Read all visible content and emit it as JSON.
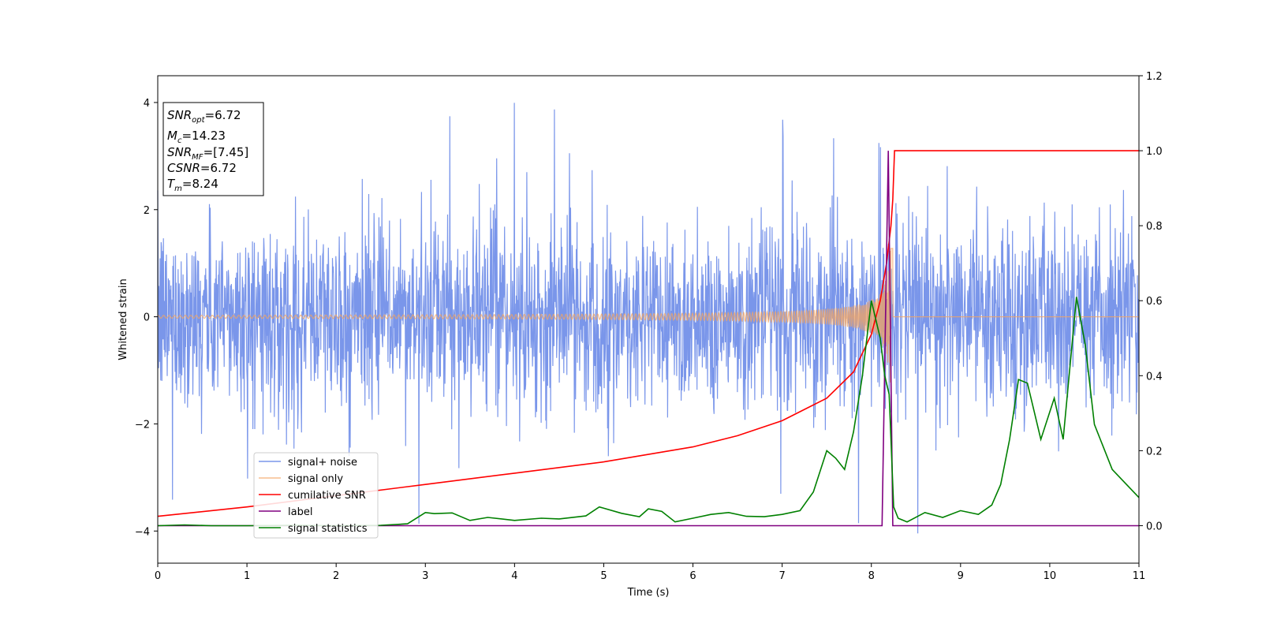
{
  "chart_data": {
    "type": "line",
    "xlabel": "Time (s)",
    "ylabel": "Whitened strain",
    "xlim": [
      0,
      11
    ],
    "ylim_left": [
      -4.6,
      4.5
    ],
    "ylim_right": [
      -0.1,
      1.2
    ],
    "x_ticks": [
      "0",
      "1",
      "2",
      "3",
      "4",
      "5",
      "6",
      "7",
      "8",
      "9",
      "10",
      "11"
    ],
    "y_ticks_left": [
      "−4",
      "−2",
      "0",
      "2",
      "4"
    ],
    "y_ticks_right": [
      "0.0",
      "0.2",
      "0.4",
      "0.6",
      "0.8",
      "1.0",
      "1.2"
    ],
    "grid": false,
    "legend_position": "lower-left",
    "legend_labels": [
      "signal+ noise",
      "signal only",
      "cumilative SNR",
      "label",
      "signal statistics"
    ],
    "annotation": {
      "snr_opt": "=6.72",
      "mc": "=14.23",
      "snr_mf": "=[7.45]",
      "csnr": "=6.72",
      "tm": "=8.24"
    },
    "series": [
      {
        "name": "signal+ noise",
        "axis": "left",
        "color": "#4169e1",
        "noise_sigma": 0.85,
        "y_range_visible": [
          -4.2,
          4.1
        ]
      },
      {
        "name": "signal only",
        "axis": "left",
        "color": "#f4a460",
        "chirp_end_time": 8.24,
        "peak_amplitude": 1.3
      },
      {
        "name": "cumilative SNR",
        "axis": "right",
        "color": "#ff0000",
        "x": [
          0,
          1,
          2,
          3,
          4,
          5,
          5.5,
          6,
          6.5,
          7,
          7.5,
          7.8,
          8.0,
          8.1,
          8.17,
          8.22,
          8.24,
          8.26,
          11
        ],
        "y": [
          0.025,
          0.05,
          0.08,
          0.11,
          0.14,
          0.17,
          0.19,
          0.21,
          0.24,
          0.28,
          0.34,
          0.41,
          0.51,
          0.6,
          0.7,
          0.8,
          0.87,
          1.0,
          1.0
        ]
      },
      {
        "name": "label",
        "axis": "right",
        "color": "#800080",
        "x": [
          0,
          8.12,
          8.19,
          8.24,
          11
        ],
        "y": [
          0.0,
          0.0,
          1.0,
          0.0,
          0.0
        ]
      },
      {
        "name": "signal statistics",
        "axis": "right",
        "color": "#008000",
        "x": [
          0,
          0.3,
          0.6,
          1,
          1.5,
          2,
          2.5,
          2.8,
          3.0,
          3.1,
          3.3,
          3.5,
          3.7,
          4.0,
          4.3,
          4.5,
          4.8,
          4.95,
          5.2,
          5.4,
          5.5,
          5.65,
          5.8,
          6.0,
          6.2,
          6.4,
          6.6,
          6.8,
          7.0,
          7.2,
          7.35,
          7.5,
          7.6,
          7.7,
          7.8,
          7.9,
          8.0,
          8.1,
          8.15,
          8.2,
          8.25,
          8.3,
          8.4,
          8.6,
          8.8,
          9.0,
          9.2,
          9.35,
          9.45,
          9.55,
          9.65,
          9.75,
          9.9,
          10.05,
          10.15,
          10.3,
          10.4,
          10.5,
          10.7,
          10.9,
          11.0
        ],
        "y": [
          0.0,
          0.002,
          0.0,
          0.0,
          0.001,
          0.0,
          0.001,
          0.005,
          0.035,
          0.032,
          0.034,
          0.014,
          0.022,
          0.014,
          0.02,
          0.018,
          0.026,
          0.05,
          0.033,
          0.024,
          0.045,
          0.038,
          0.01,
          0.02,
          0.03,
          0.035,
          0.025,
          0.024,
          0.03,
          0.04,
          0.09,
          0.2,
          0.18,
          0.15,
          0.25,
          0.4,
          0.6,
          0.5,
          0.4,
          0.35,
          0.05,
          0.02,
          0.01,
          0.035,
          0.022,
          0.04,
          0.03,
          0.055,
          0.11,
          0.23,
          0.39,
          0.38,
          0.23,
          0.34,
          0.23,
          0.61,
          0.48,
          0.27,
          0.15,
          0.1,
          0.075
        ]
      }
    ]
  }
}
